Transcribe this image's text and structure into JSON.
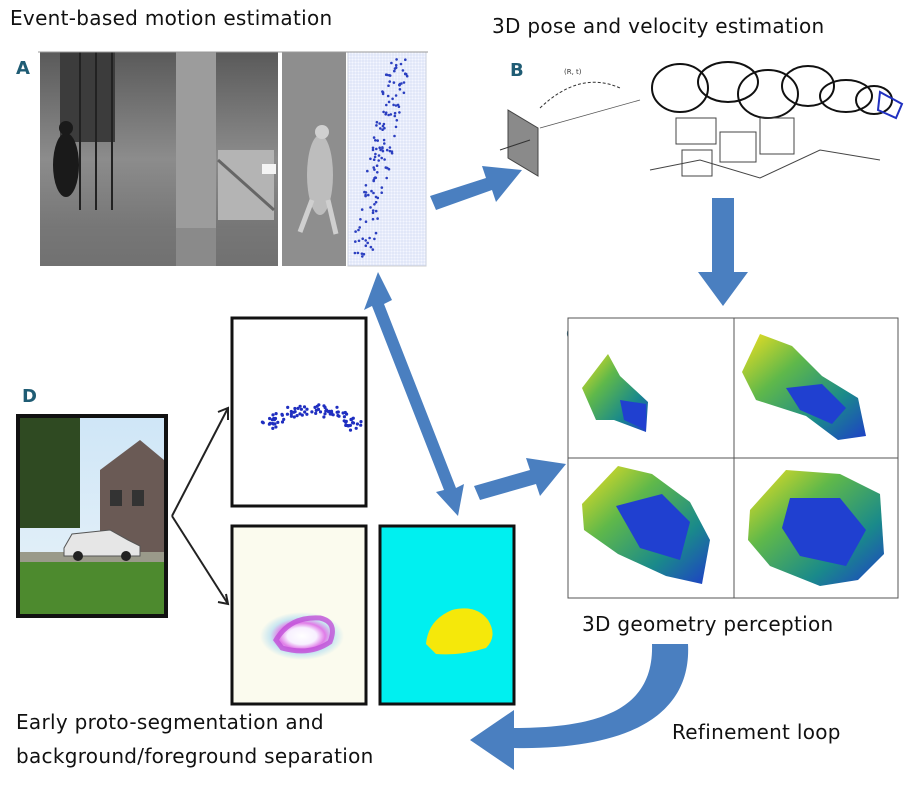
{
  "section_titles": {
    "motion": "Event-based motion estimation",
    "pose": "3D pose and velocity estimation",
    "geometry": "3D geometry perception",
    "segmentation_line1": "Early proto-segmentation and",
    "segmentation_line2": "background/foreground separation",
    "refinement": "Refinement loop"
  },
  "panel_labels": {
    "a": "A",
    "b": "B",
    "c": "C",
    "d": "D"
  },
  "colors": {
    "arrow": "#4a7fc0",
    "panel_letter": "#1f5c74",
    "segmentation_background": "#00f0f0",
    "segmentation_blob": "#f5e80a",
    "event_points": "#2b3fc0"
  },
  "icons": {
    "pose_camera": "camera-plane-icon"
  }
}
